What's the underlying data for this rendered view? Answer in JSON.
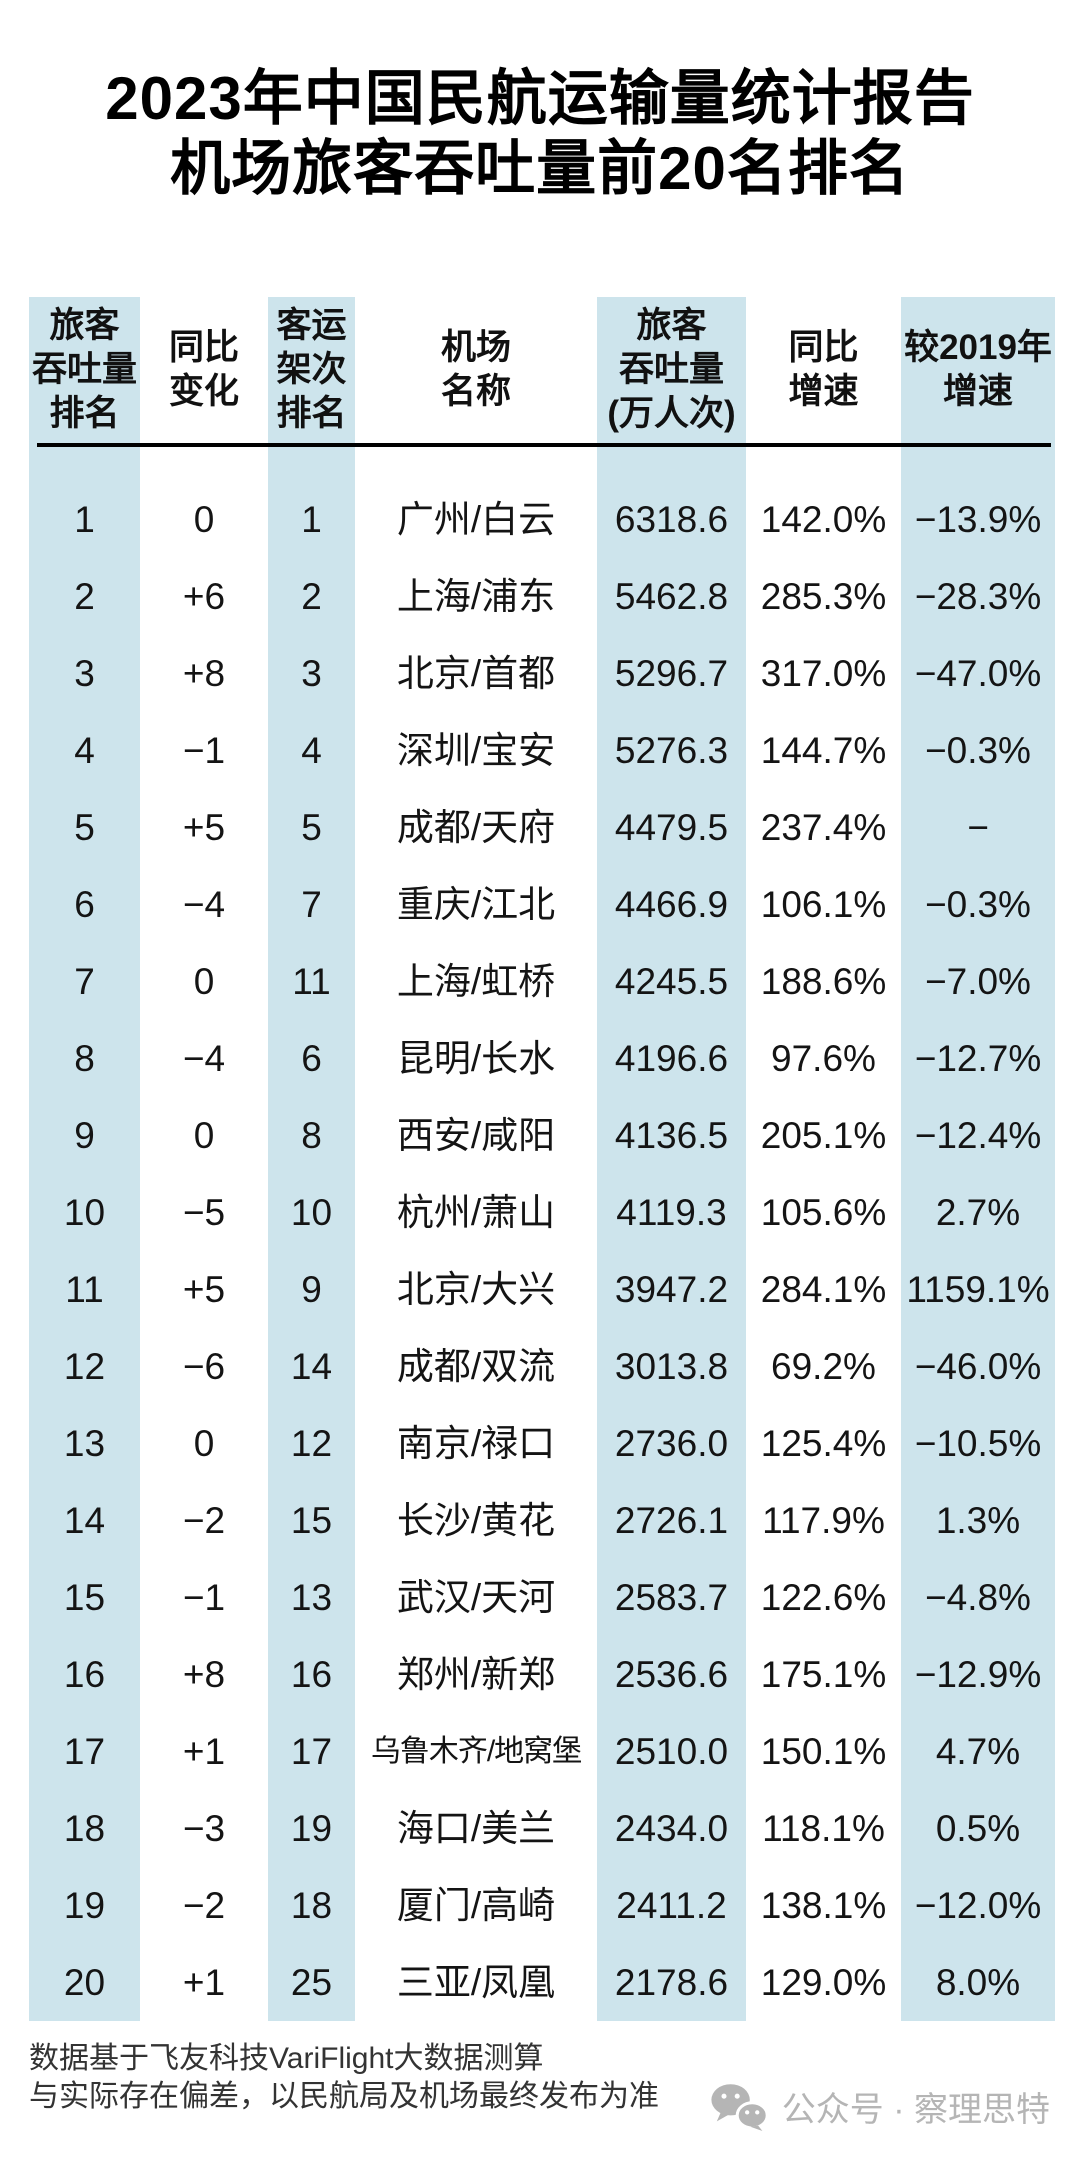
{
  "title": {
    "line1": "2023年中国民航运输量统计报告",
    "line2": "机场旅客吞吐量前20名排名"
  },
  "table": {
    "headers": [
      "旅客\n吞吐量\n排名",
      "同比\n变化",
      "客运\n架次\n排名",
      "机场\n名称",
      "旅客\n吞吐量\n(万人次)",
      "同比\n增速",
      "较2019年\n增速"
    ]
  },
  "chart_data": {
    "type": "table",
    "title": "2023年中国民航运输量统计报告 机场旅客吞吐量前20名排名",
    "columns": [
      "旅客吞吐量排名",
      "同比变化",
      "客运架次排名",
      "机场名称",
      "旅客吞吐量(万人次)",
      "同比增速",
      "较2019年增速"
    ],
    "rows": [
      [
        "1",
        "0",
        "1",
        "广州/白云",
        "6318.6",
        "142.0%",
        "−13.9%"
      ],
      [
        "2",
        "+6",
        "2",
        "上海/浦东",
        "5462.8",
        "285.3%",
        "−28.3%"
      ],
      [
        "3",
        "+8",
        "3",
        "北京/首都",
        "5296.7",
        "317.0%",
        "−47.0%"
      ],
      [
        "4",
        "−1",
        "4",
        "深圳/宝安",
        "5276.3",
        "144.7%",
        "−0.3%"
      ],
      [
        "5",
        "+5",
        "5",
        "成都/天府",
        "4479.5",
        "237.4%",
        "−"
      ],
      [
        "6",
        "−4",
        "7",
        "重庆/江北",
        "4466.9",
        "106.1%",
        "−0.3%"
      ],
      [
        "7",
        "0",
        "11",
        "上海/虹桥",
        "4245.5",
        "188.6%",
        "−7.0%"
      ],
      [
        "8",
        "−4",
        "6",
        "昆明/长水",
        "4196.6",
        "97.6%",
        "−12.7%"
      ],
      [
        "9",
        "0",
        "8",
        "西安/咸阳",
        "4136.5",
        "205.1%",
        "−12.4%"
      ],
      [
        "10",
        "−5",
        "10",
        "杭州/萧山",
        "4119.3",
        "105.6%",
        "2.7%"
      ],
      [
        "11",
        "+5",
        "9",
        "北京/大兴",
        "3947.2",
        "284.1%",
        "1159.1%"
      ],
      [
        "12",
        "−6",
        "14",
        "成都/双流",
        "3013.8",
        "69.2%",
        "−46.0%"
      ],
      [
        "13",
        "0",
        "12",
        "南京/禄口",
        "2736.0",
        "125.4%",
        "−10.5%"
      ],
      [
        "14",
        "−2",
        "15",
        "长沙/黄花",
        "2726.1",
        "117.9%",
        "1.3%"
      ],
      [
        "15",
        "−1",
        "13",
        "武汉/天河",
        "2583.7",
        "122.6%",
        "−4.8%"
      ],
      [
        "16",
        "+8",
        "16",
        "郑州/新郑",
        "2536.6",
        "175.1%",
        "−12.9%"
      ],
      [
        "17",
        "+1",
        "17",
        "乌鲁木齐/地窝堡",
        "2510.0",
        "150.1%",
        "4.7%"
      ],
      [
        "18",
        "−3",
        "19",
        "海口/美兰",
        "2434.0",
        "118.1%",
        "0.5%"
      ],
      [
        "19",
        "−2",
        "18",
        "厦门/高崎",
        "2411.2",
        "138.1%",
        "−12.0%"
      ],
      [
        "20",
        "+1",
        "25",
        "三亚/凤凰",
        "2178.6",
        "129.0%",
        "8.0%"
      ]
    ]
  },
  "footer": {
    "line1": "数据基于飞友科技VariFlight大数据测算",
    "line2": "与实际存在偏差，以民航局及机场最终发布为准"
  },
  "branding": {
    "icon": "wechat-icon",
    "text": "公众号 · 察理思特"
  },
  "colors": {
    "stripe": "#cde4ec",
    "title_text": "#000000",
    "body_text": "#141414",
    "footer_text": "#333333",
    "branding_text": "#b5b5b5"
  }
}
